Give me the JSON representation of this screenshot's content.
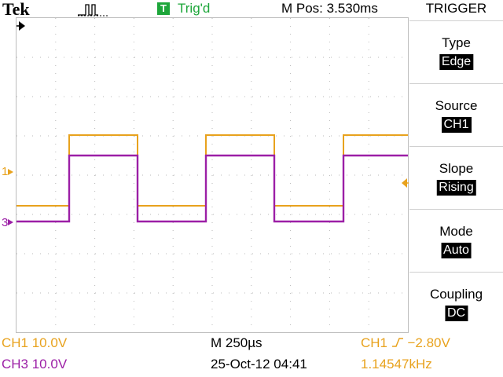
{
  "header": {
    "brand": "Tek",
    "acquisition_icon": "pulse-waveform-icon",
    "trigger_badge": "T",
    "trigger_status": "Trig'd",
    "main_position": "M Pos: 3.530ms"
  },
  "markers": {
    "ch1": "1",
    "ch3": "3"
  },
  "menu": {
    "title": "TRIGGER",
    "items": [
      {
        "label": "Type",
        "value": "Edge"
      },
      {
        "label": "Source",
        "value": "CH1"
      },
      {
        "label": "Slope",
        "value": "Rising"
      },
      {
        "label": "Mode",
        "value": "Auto"
      },
      {
        "label": "Coupling",
        "value": "DC"
      }
    ]
  },
  "readouts": {
    "ch1_scale": "CH1  10.0V",
    "ch3_scale": "CH3  10.0V",
    "timebase": "M 250µs",
    "datetime": "25-Oct-12 04:41",
    "trigger_src": "CH1",
    "trigger_level": "−2.80V",
    "frequency": "1.14547kHz"
  },
  "colors": {
    "ch1": "#e8a21d",
    "ch3": "#9c1fa6",
    "trigger_status": "#1da63a"
  }
}
